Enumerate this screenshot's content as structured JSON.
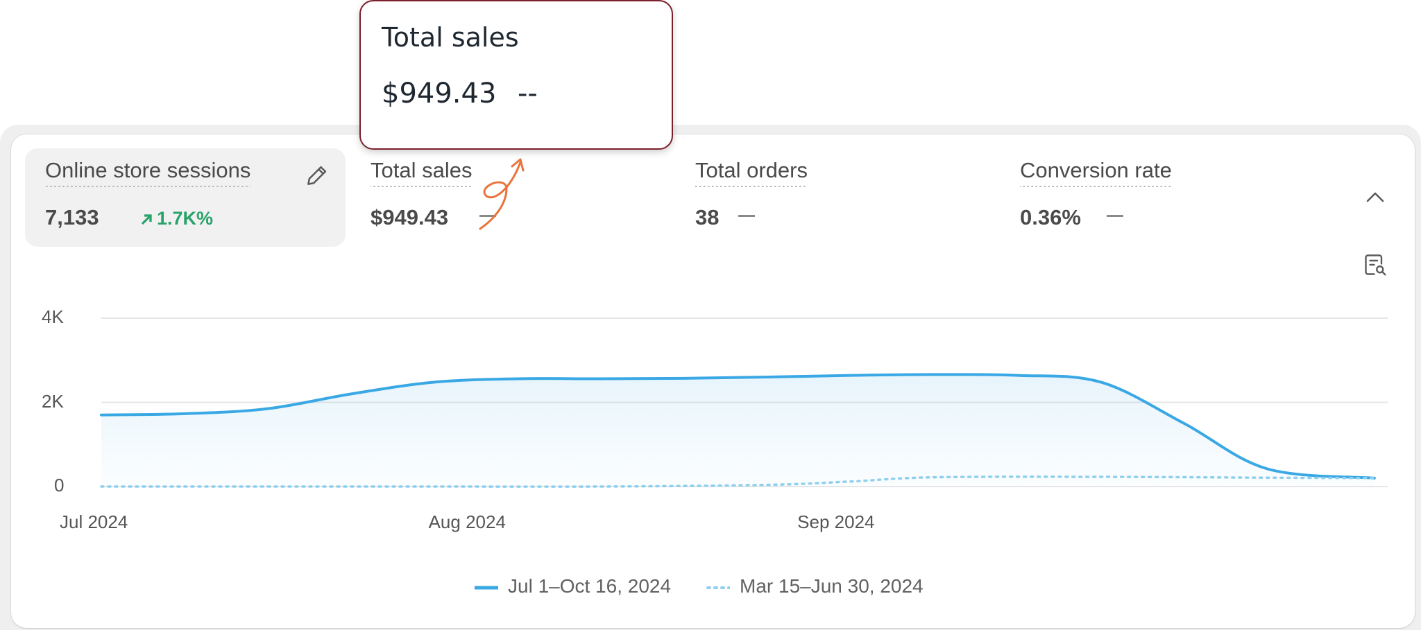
{
  "tooltip": {
    "title": "Total sales",
    "value": "$949.43",
    "comparison": "--"
  },
  "metrics": [
    {
      "label": "Online store sessions",
      "value": "7,133",
      "change": "1.7K%",
      "selected": true
    },
    {
      "label": "Total sales",
      "value": "$949.43"
    },
    {
      "label": "Total orders",
      "value": "38"
    },
    {
      "label": "Conversion rate",
      "value": "0.36%"
    }
  ],
  "icons": {
    "edit": "pencil-icon",
    "trend": "arrow-up-right-icon",
    "collapse": "chevron-up-icon",
    "report": "report-search-icon",
    "annotation": "hand-drawn-arrow-icon"
  },
  "colors": {
    "current_series": "#3aa8e4",
    "previous_series": "#8fd0ef",
    "trend_positive": "#29a36a",
    "tooltip_border": "#7a1f2b",
    "annotation": "#e8743b"
  },
  "chart_data": {
    "type": "area",
    "y_ticks": [
      "4K",
      "2K",
      "0"
    ],
    "x_ticks": [
      "Jul 2024",
      "Aug 2024",
      "Sep 2024"
    ],
    "ylim": [
      0,
      4000
    ],
    "grid": true,
    "legend_position": "bottom",
    "series": [
      {
        "name": "Jul 1–Oct 16, 2024",
        "style": "solid",
        "x": [
          "2024-07-01",
          "2024-07-08",
          "2024-07-15",
          "2024-07-22",
          "2024-07-29",
          "2024-08-05",
          "2024-08-12",
          "2024-08-19",
          "2024-08-26",
          "2024-09-02",
          "2024-09-09",
          "2024-09-16",
          "2024-09-23",
          "2024-09-30",
          "2024-10-07",
          "2024-10-16"
        ],
        "values": [
          1700,
          1730,
          1850,
          2200,
          2480,
          2560,
          2560,
          2570,
          2600,
          2640,
          2660,
          2640,
          2480,
          1500,
          420,
          200
        ]
      },
      {
        "name": "Mar 15–Jun 30, 2024",
        "style": "dotted",
        "x": [
          "2024-07-01",
          "2024-07-15",
          "2024-07-29",
          "2024-08-12",
          "2024-08-26",
          "2024-09-02",
          "2024-09-09",
          "2024-09-23",
          "2024-10-07",
          "2024-10-16"
        ],
        "values": [
          0,
          0,
          0,
          0,
          40,
          120,
          220,
          230,
          210,
          200
        ]
      }
    ]
  }
}
